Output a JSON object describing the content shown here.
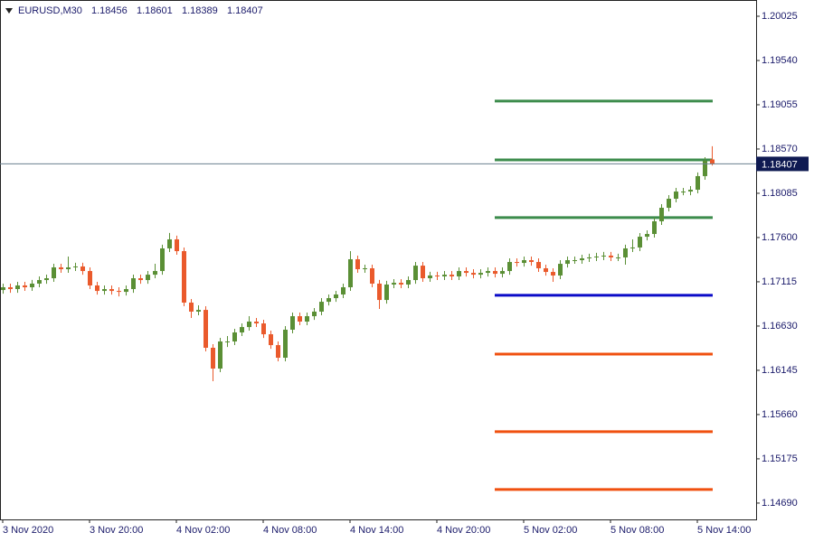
{
  "chart_data": {
    "type": "candlestick",
    "title": "EURUSD,M30",
    "categories": [
      "3 Nov 2020",
      null,
      null,
      null,
      null,
      null,
      null,
      null,
      null,
      null,
      null,
      null,
      "3 Nov 20:00",
      null,
      null,
      null,
      null,
      null,
      null,
      null,
      null,
      null,
      null,
      null,
      "4 Nov 02:00",
      null,
      null,
      null,
      null,
      null,
      null,
      null,
      null,
      null,
      null,
      null,
      "4 Nov 08:00",
      null,
      null,
      null,
      null,
      null,
      null,
      null,
      null,
      null,
      null,
      null,
      "4 Nov 14:00",
      null,
      null,
      null,
      null,
      null,
      null,
      null,
      null,
      null,
      null,
      null,
      "4 Nov 20:00",
      null,
      null,
      null,
      null,
      null,
      null,
      null,
      null,
      null,
      null,
      null,
      "5 Nov 02:00",
      null,
      null,
      null,
      null,
      null,
      null,
      null,
      null,
      null,
      null,
      null,
      "5 Nov 08:00",
      null,
      null,
      null,
      null,
      null,
      null,
      null,
      null,
      null,
      null,
      null,
      "5 Nov 14:00",
      null,
      null
    ],
    "open": [
      1.17025,
      1.17055,
      1.17035,
      1.17075,
      1.17055,
      1.17095,
      1.17134,
      1.17154,
      1.17273,
      1.17253,
      1.17273,
      1.17283,
      1.17233,
      1.17075,
      1.17015,
      1.17035,
      1.17015,
      1.17005,
      1.17035,
      1.17154,
      1.17134,
      1.17193,
      1.17233,
      1.17481,
      1.1758,
      1.17451,
      1.16887,
      1.16788,
      1.16807,
      1.16392,
      1.16164,
      1.16461,
      1.16461,
      1.1656,
      1.16619,
      1.16679,
      1.16659,
      1.1654,
      1.16421,
      1.16283,
      1.1659,
      1.16738,
      1.16679,
      1.16738,
      1.16788,
      1.16896,
      1.16936,
      1.16976,
      1.17055,
      1.17362,
      1.17253,
      1.17263,
      1.17095,
      1.16916,
      1.17085,
      1.17104,
      1.17085,
      1.17134,
      1.17292,
      1.17154,
      1.17184,
      1.17174,
      1.17193,
      1.17174,
      1.17233,
      1.17213,
      1.17193,
      1.17213,
      1.17233,
      1.17203,
      1.17233,
      1.17332,
      1.17322,
      1.17352,
      1.17332,
      1.17263,
      1.17223,
      1.17184,
      1.17312,
      1.17352,
      1.17352,
      1.17372,
      1.17382,
      1.17392,
      1.17402,
      1.17382,
      1.17382,
      1.17481,
      1.17491,
      1.17609,
      1.17639,
      1.17778,
      1.17926,
      1.18025,
      1.18104,
      1.18104,
      1.18124,
      1.18273,
      1.18456
    ],
    "high": [
      1.17095,
      1.17095,
      1.17115,
      1.17115,
      1.17135,
      1.17174,
      1.17194,
      1.17313,
      1.17313,
      1.17392,
      1.17323,
      1.17323,
      1.17273,
      1.17115,
      1.17075,
      1.17075,
      1.17055,
      1.17075,
      1.17194,
      1.17194,
      1.17233,
      1.17313,
      1.17521,
      1.1765,
      1.1762,
      1.17491,
      1.16927,
      1.16857,
      1.16847,
      1.16432,
      1.16501,
      1.16521,
      1.166,
      1.16659,
      1.16738,
      1.16719,
      1.16699,
      1.1658,
      1.16461,
      1.1663,
      1.16778,
      1.16778,
      1.16778,
      1.16828,
      1.16936,
      1.16976,
      1.17016,
      1.17095,
      1.17451,
      1.17402,
      1.17303,
      1.17303,
      1.17135,
      1.17125,
      1.17144,
      1.17144,
      1.17174,
      1.17332,
      1.17332,
      1.17224,
      1.17224,
      1.17233,
      1.17233,
      1.17273,
      1.17273,
      1.17253,
      1.17253,
      1.17273,
      1.17273,
      1.17273,
      1.17372,
      1.17372,
      1.17392,
      1.17392,
      1.17372,
      1.17303,
      1.17263,
      1.17352,
      1.17392,
      1.17392,
      1.17412,
      1.17422,
      1.17432,
      1.17442,
      1.17442,
      1.17422,
      1.17521,
      1.1758,
      1.17649,
      1.17679,
      1.17818,
      1.17966,
      1.18065,
      1.18144,
      1.18144,
      1.18164,
      1.18313,
      1.18481,
      1.18601
    ],
    "low": [
      1.16985,
      1.16995,
      1.16995,
      1.17015,
      1.17015,
      1.17055,
      1.17094,
      1.17114,
      1.17213,
      1.17213,
      1.17233,
      1.17193,
      1.17035,
      1.16975,
      1.16975,
      1.16975,
      1.16955,
      1.16965,
      1.16995,
      1.17094,
      1.17094,
      1.17154,
      1.17193,
      1.17441,
      1.17411,
      1.16847,
      1.16718,
      1.16748,
      1.16352,
      1.16025,
      1.16124,
      1.16401,
      1.16421,
      1.1652,
      1.1658,
      1.16619,
      1.165,
      1.16381,
      1.16243,
      1.16243,
      1.1655,
      1.16639,
      1.16639,
      1.16698,
      1.16748,
      1.16856,
      1.16896,
      1.16936,
      1.17015,
      1.17213,
      1.17213,
      1.17055,
      1.16817,
      1.16876,
      1.17045,
      1.17045,
      1.17045,
      1.17094,
      1.17114,
      1.17114,
      1.17134,
      1.17134,
      1.17134,
      1.17134,
      1.17173,
      1.17153,
      1.17153,
      1.17173,
      1.17163,
      1.17163,
      1.17193,
      1.17282,
      1.17282,
      1.17292,
      1.17223,
      1.17183,
      1.17114,
      1.17144,
      1.17272,
      1.17312,
      1.17312,
      1.17332,
      1.17342,
      1.17352,
      1.17342,
      1.17342,
      1.17302,
      1.17441,
      1.17451,
      1.17569,
      1.17599,
      1.17738,
      1.17886,
      1.17985,
      1.18064,
      1.18064,
      1.18084,
      1.18233,
      1.18389
    ],
    "close": [
      1.17055,
      1.17035,
      1.17075,
      1.17055,
      1.17095,
      1.17134,
      1.17154,
      1.17273,
      1.17253,
      1.17273,
      1.17283,
      1.17233,
      1.17075,
      1.17015,
      1.17035,
      1.17015,
      1.17005,
      1.17035,
      1.17154,
      1.17134,
      1.17193,
      1.17233,
      1.17481,
      1.1758,
      1.17451,
      1.16887,
      1.16788,
      1.16807,
      1.16392,
      1.16164,
      1.16461,
      1.16461,
      1.1656,
      1.16619,
      1.16679,
      1.16659,
      1.1654,
      1.16421,
      1.16283,
      1.1659,
      1.16738,
      1.16679,
      1.16738,
      1.16788,
      1.16896,
      1.16936,
      1.16976,
      1.17055,
      1.17362,
      1.17253,
      1.17263,
      1.17095,
      1.16916,
      1.17085,
      1.17104,
      1.17085,
      1.17134,
      1.17292,
      1.17154,
      1.17184,
      1.17174,
      1.17193,
      1.17174,
      1.17233,
      1.17213,
      1.17193,
      1.17213,
      1.17233,
      1.17203,
      1.17233,
      1.17332,
      1.17322,
      1.17352,
      1.17332,
      1.17263,
      1.17223,
      1.17184,
      1.17312,
      1.17352,
      1.17352,
      1.17372,
      1.17382,
      1.17392,
      1.17402,
      1.17382,
      1.17382,
      1.17481,
      1.17491,
      1.17609,
      1.17639,
      1.17778,
      1.17926,
      1.18025,
      1.18104,
      1.18104,
      1.18124,
      1.18273,
      1.18441,
      1.18407
    ],
    "up_color": "#5a8f35",
    "down_color": "#ea5a2c",
    "levels": [
      {
        "value": 1.19095,
        "color": "#3c8c4c"
      },
      {
        "value": 1.18451,
        "color": "#3c8c4c"
      },
      {
        "value": 1.17818,
        "color": "#3c8c4c"
      },
      {
        "value": 1.16967,
        "color": "#0b0bc8"
      },
      {
        "value": 1.16323,
        "color": "#f0500f"
      },
      {
        "value": 1.15472,
        "color": "#f0500f"
      },
      {
        "value": 1.14839,
        "color": "#f0500f"
      }
    ],
    "ylim": [
      1.14511,
      1.20203
    ],
    "yticks": [
      1.20025,
      {
        "value": 1.1954,
        "label": "1.19540"
      },
      1.19055,
      {
        "value": 1.1857,
        "label": "1.18570"
      },
      1.18085,
      {
        "value": 1.176,
        "label": "1.17600"
      },
      1.17115,
      {
        "value": 1.1663,
        "label": "1.16630"
      },
      1.16145,
      {
        "value": 1.1566,
        "label": "1.15660"
      },
      1.15175,
      {
        "value": 1.1469,
        "label": "1.14690"
      }
    ]
  }
}
